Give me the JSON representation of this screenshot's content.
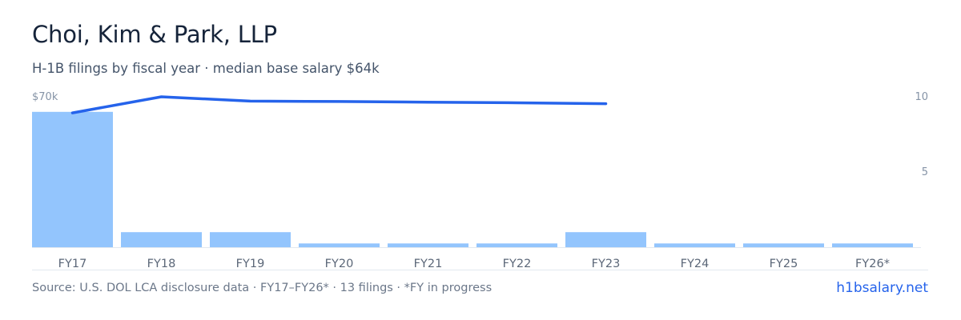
{
  "header": {
    "title": "Choi, Kim & Park, LLP",
    "subtitle": "H-1B filings by fiscal year · median base salary $64k"
  },
  "chart_data": {
    "type": "bar",
    "categories": [
      "FY17",
      "FY18",
      "FY19",
      "FY20",
      "FY21",
      "FY22",
      "FY23",
      "FY24",
      "FY25",
      "FY26*"
    ],
    "series": [
      {
        "type": "bar",
        "axis": "right",
        "values": [
          9,
          1,
          1,
          0.25,
          0.25,
          0.25,
          1,
          0.25,
          0.25,
          0.25
        ],
        "color": "#93c5fd"
      },
      {
        "type": "line",
        "axis": "left",
        "values": [
          62500,
          70000,
          68000,
          67800,
          67500,
          67200,
          66800,
          null,
          null,
          null
        ],
        "color": "#2563eb"
      }
    ],
    "left_axis": {
      "max": 70000,
      "ticks": [
        {
          "value": 70000,
          "label": "$70k"
        }
      ]
    },
    "right_axis": {
      "max": 10,
      "ticks": [
        {
          "value": 10,
          "label": "10"
        },
        {
          "value": 5,
          "label": "5"
        }
      ]
    },
    "grid": false,
    "legend": "none"
  },
  "footer": {
    "source": "Source: U.S. DOL LCA disclosure data · FY17–FY26* · 13 filings · *FY in progress",
    "link": "h1bsalary.net"
  },
  "colors": {
    "bar": "#93c5fd",
    "line": "#2563eb",
    "axis_text": "#8593a6",
    "baseline": "#e2e8f0"
  }
}
